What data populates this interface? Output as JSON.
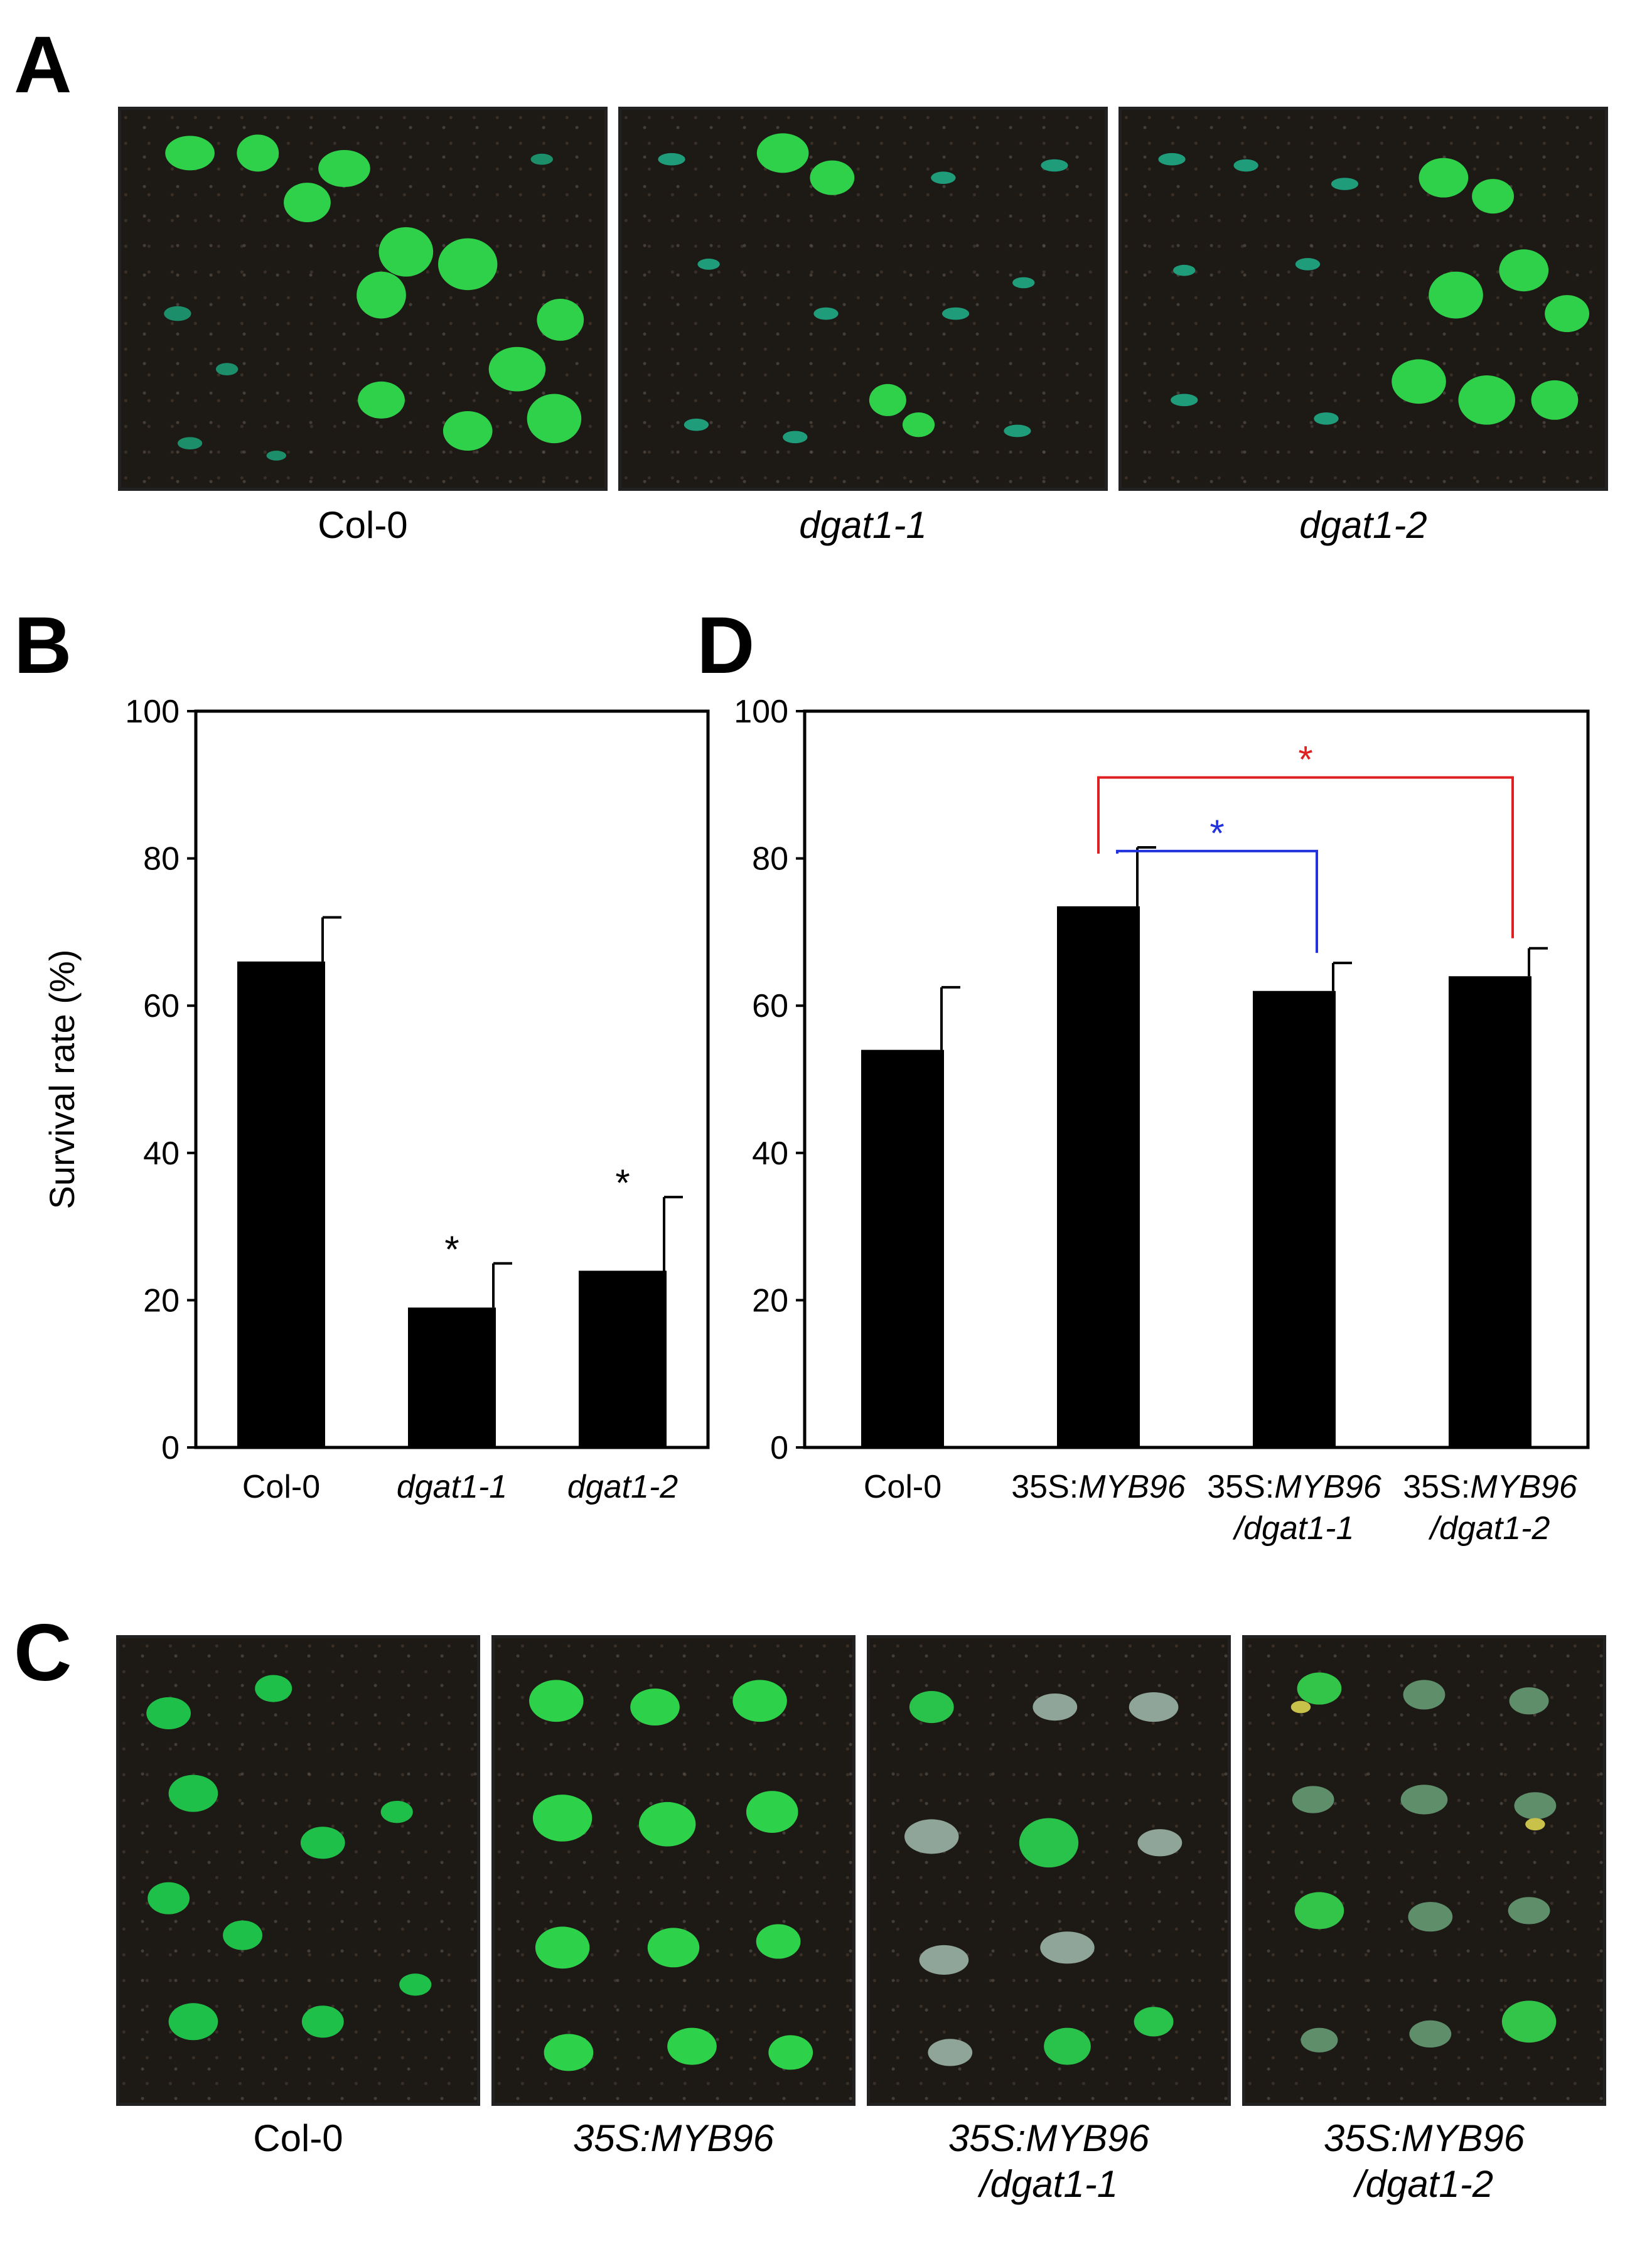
{
  "panels": {
    "A": {
      "letter": "A",
      "captions": [
        {
          "text": "Col-0",
          "italic": false
        },
        {
          "text": "dgat1-1",
          "italic": true
        },
        {
          "text": "dgat1-2",
          "italic": true
        }
      ]
    },
    "B": {
      "letter": "B"
    },
    "C": {
      "letter": "C",
      "captions": [
        {
          "lines": [
            "Col-0"
          ],
          "italic": false
        },
        {
          "lines": [
            "35S:MYB96"
          ],
          "italic": true
        },
        {
          "lines": [
            "35S:MYB96",
            "/dgat1-1"
          ],
          "italic": true
        },
        {
          "lines": [
            "35S:MYB96",
            "/dgat1-2"
          ],
          "italic": true
        }
      ]
    },
    "D": {
      "letter": "D"
    }
  },
  "chart_data": [
    {
      "panel": "B",
      "type": "bar",
      "ylabel": "Survival rate (%)",
      "ylim": [
        0,
        100
      ],
      "yticks": [
        0,
        20,
        40,
        60,
        80,
        100
      ],
      "categories": [
        {
          "lines": [
            {
              "parts": [
                {
                  "t": "Col-0",
                  "i": false
                }
              ]
            }
          ]
        },
        {
          "lines": [
            {
              "parts": [
                {
                  "t": "dgat1-1",
                  "i": true
                }
              ]
            }
          ]
        },
        {
          "lines": [
            {
              "parts": [
                {
                  "t": "dgat1-2",
                  "i": true
                }
              ]
            }
          ]
        }
      ],
      "values": [
        66,
        19,
        24
      ],
      "errors": [
        6,
        6,
        10
      ],
      "bar_color": "#000000",
      "annotations": [
        {
          "category_index": 1,
          "text": "*"
        },
        {
          "category_index": 2,
          "text": "*"
        }
      ]
    },
    {
      "panel": "D",
      "type": "bar",
      "ylim": [
        0,
        100
      ],
      "yticks": [
        0,
        20,
        40,
        60,
        80,
        100
      ],
      "categories": [
        {
          "lines": [
            {
              "parts": [
                {
                  "t": "Col-0",
                  "i": false
                }
              ]
            }
          ]
        },
        {
          "lines": [
            {
              "parts": [
                {
                  "t": "35S:",
                  "i": false
                },
                {
                  "t": "MYB96",
                  "i": true
                }
              ]
            }
          ]
        },
        {
          "lines": [
            {
              "parts": [
                {
                  "t": "35S:",
                  "i": false
                },
                {
                  "t": "MYB96",
                  "i": true
                }
              ]
            },
            {
              "parts": [
                {
                  "t": "/dgat1-1",
                  "i": true
                }
              ]
            }
          ]
        },
        {
          "lines": [
            {
              "parts": [
                {
                  "t": "35S:",
                  "i": false
                },
                {
                  "t": "MYB96",
                  "i": true
                }
              ]
            },
            {
              "parts": [
                {
                  "t": "/dgat1-2",
                  "i": true
                }
              ]
            }
          ]
        }
      ],
      "values": [
        54,
        73.5,
        62,
        64
      ],
      "errors": [
        8.5,
        8,
        3.8,
        3.8
      ],
      "bar_color": "#000000",
      "comparisons": [
        {
          "from": 1,
          "to": 3,
          "y": 91,
          "text": "*",
          "color": "#e02020"
        },
        {
          "from": 1,
          "to": 2,
          "y": 81,
          "text": "*",
          "color": "#2233dd"
        }
      ]
    }
  ]
}
